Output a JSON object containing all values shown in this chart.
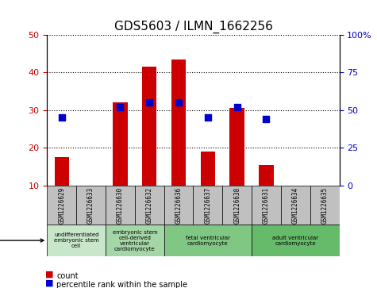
{
  "title": "GDS5603 / ILMN_1662256",
  "samples": [
    "GSM1226629",
    "GSM1226633",
    "GSM1226630",
    "GSM1226632",
    "GSM1226636",
    "GSM1226637",
    "GSM1226638",
    "GSM1226631",
    "GSM1226634",
    "GSM1226635"
  ],
  "counts": [
    17.5,
    null,
    32.0,
    41.5,
    43.5,
    19.0,
    30.5,
    15.5,
    null,
    null
  ],
  "percentile_ranks": [
    45,
    null,
    52,
    55,
    55,
    45,
    52,
    44,
    null,
    null
  ],
  "ylim_left": [
    10,
    50
  ],
  "ylim_right": [
    0,
    100
  ],
  "yticks_left": [
    10,
    20,
    30,
    40,
    50
  ],
  "yticks_right": [
    0,
    25,
    50,
    75,
    100
  ],
  "ytick_labels_right": [
    "0",
    "25",
    "50",
    "75",
    "100%"
  ],
  "cell_types": [
    {
      "label": "undifferentiated\nembryonic stem\ncell",
      "start": 0,
      "end": 2,
      "color": "#c8e6c9"
    },
    {
      "label": "embryonic stem\ncell-derived\nventricular\ncardiomyocyte",
      "start": 2,
      "end": 4,
      "color": "#a5d6a7"
    },
    {
      "label": "fetal ventricular\ncardiomyocyte",
      "start": 4,
      "end": 7,
      "color": "#81c784"
    },
    {
      "label": "adult ventricular\ncardiomyocyte",
      "start": 7,
      "end": 10,
      "color": "#66bb6a"
    }
  ],
  "bar_color": "#cc0000",
  "dot_color": "#0000cc",
  "bar_width": 0.5,
  "dot_size": 40,
  "grid_color": "#000000",
  "grid_linestyle": "dotted",
  "tick_label_color_left": "#cc0000",
  "tick_label_color_right": "#0000cc",
  "sample_box_color": "#c0c0c0",
  "legend_count_color": "#cc0000",
  "legend_percentile_color": "#0000cc"
}
